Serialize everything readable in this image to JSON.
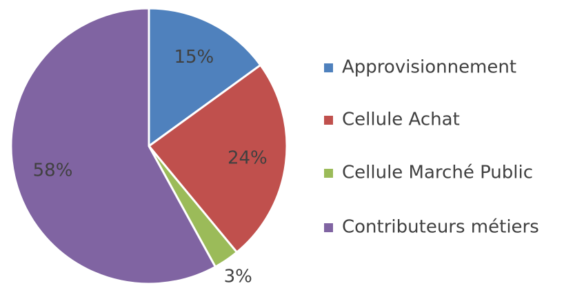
{
  "chart_data": {
    "type": "pie",
    "categories": [
      "Approvisionnement",
      "Cellule Achat",
      "Cellule Marché Public",
      "Contributeurs métiers"
    ],
    "values": [
      15,
      24,
      3,
      58
    ],
    "value_labels": [
      "15%",
      "24%",
      "3%",
      "58%"
    ],
    "colors": [
      "#4f81bd",
      "#c0504d",
      "#9bbb59",
      "#8064a2"
    ],
    "legend": "right"
  }
}
